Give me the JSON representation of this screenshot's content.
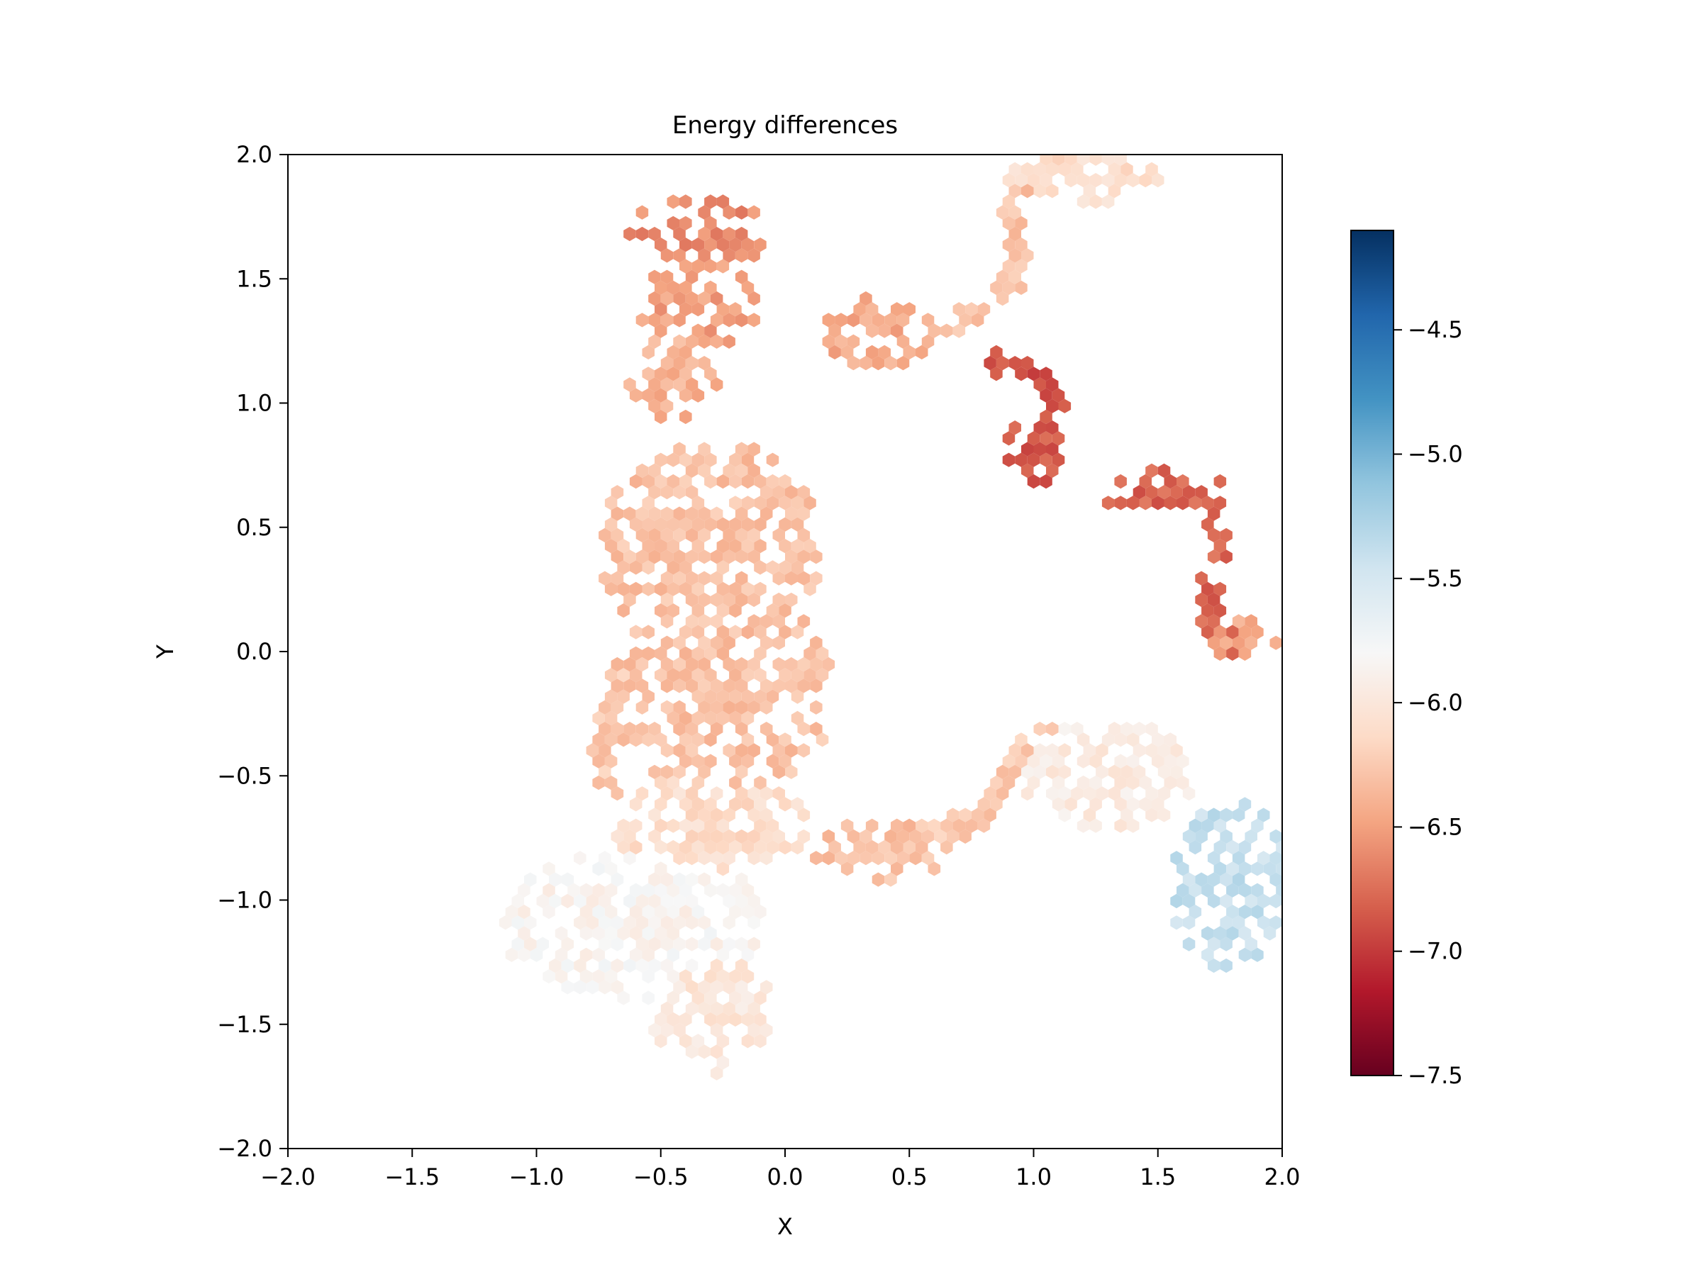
{
  "chart_data": {
    "type": "heatmap",
    "subtype": "hexbin",
    "title": "Energy differences",
    "xlabel": "X",
    "ylabel": "Y",
    "xlim": [
      -2.0,
      2.0
    ],
    "ylim": [
      -2.0,
      2.0
    ],
    "x_ticks": [
      "−2.0",
      "−1.5",
      "−1.0",
      "−0.5",
      "0.0",
      "0.5",
      "1.0",
      "1.5",
      "2.0"
    ],
    "y_ticks": [
      "−2.0",
      "−1.5",
      "−1.0",
      "−0.5",
      "0.0",
      "0.5",
      "1.0",
      "1.5",
      "2.0"
    ],
    "grid": false,
    "colormap": "RdBu",
    "colorbar": {
      "vmin": -7.5,
      "vmax": -4.1,
      "ticks": [
        "−4.5",
        "−5.0",
        "−5.5",
        "−6.0",
        "−6.5",
        "−7.0",
        "−7.5"
      ],
      "tick_values": [
        -4.5,
        -5.0,
        -5.5,
        -6.0,
        -6.5,
        -7.0,
        -7.5
      ],
      "stops": [
        "#67001f",
        "#b2182b",
        "#d6604d",
        "#f4a582",
        "#fddbc7",
        "#f7f7f7",
        "#d1e5f0",
        "#92c5de",
        "#4393c3",
        "#2166ac",
        "#053061"
      ]
    },
    "regions": [
      {
        "cx": -0.35,
        "cy": 1.68,
        "rx": 0.3,
        "ry": 0.14,
        "value": -6.6
      },
      {
        "cx": -0.35,
        "cy": 1.4,
        "rx": 0.25,
        "ry": 0.18,
        "value": -6.5
      },
      {
        "cx": -0.45,
        "cy": 1.1,
        "rx": 0.18,
        "ry": 0.18,
        "value": -6.4
      },
      {
        "cx": 0.38,
        "cy": 1.28,
        "rx": 0.22,
        "ry": 0.15,
        "value": -6.45
      },
      {
        "cx": -0.3,
        "cy": 0.4,
        "rx": 0.45,
        "ry": 0.45,
        "value": -6.3
      },
      {
        "cx": -0.25,
        "cy": -0.15,
        "rx": 0.45,
        "ry": 0.45,
        "value": -6.3
      },
      {
        "cx": -0.3,
        "cy": -0.7,
        "rx": 0.4,
        "ry": 0.2,
        "value": -6.1
      },
      {
        "cx": -0.6,
        "cy": -1.1,
        "rx": 0.55,
        "ry": 0.3,
        "value": -5.85
      },
      {
        "cx": -0.3,
        "cy": -1.45,
        "rx": 0.25,
        "ry": 0.25,
        "value": -6.0
      },
      {
        "cx": 0.4,
        "cy": -0.8,
        "rx": 0.3,
        "ry": 0.12,
        "value": -6.3
      },
      {
        "cx": 1.3,
        "cy": -0.5,
        "rx": 0.35,
        "ry": 0.22,
        "value": -5.95
      },
      {
        "cx": 1.8,
        "cy": -0.95,
        "rx": 0.25,
        "ry": 0.35,
        "value": -5.4
      },
      {
        "cx": 1.2,
        "cy": 1.9,
        "rx": 0.35,
        "ry": 0.1,
        "value": -6.1
      },
      {
        "cx": 1.0,
        "cy": 0.8,
        "rx": 0.12,
        "ry": 0.15,
        "value": -6.85
      },
      {
        "cx": 1.5,
        "cy": 0.65,
        "rx": 0.3,
        "ry": 0.08,
        "value": -6.8
      },
      {
        "cx": 1.85,
        "cy": 0.05,
        "rx": 0.15,
        "ry": 0.1,
        "value": -6.45
      }
    ],
    "trails": [
      {
        "points": [
          [
            0.6,
            1.3
          ],
          [
            0.75,
            1.35
          ],
          [
            0.9,
            1.45
          ],
          [
            0.95,
            1.6
          ],
          [
            0.92,
            1.75
          ],
          [
            0.95,
            1.9
          ]
        ],
        "value": -6.3
      },
      {
        "points": [
          [
            0.85,
            1.17
          ],
          [
            0.95,
            1.12
          ],
          [
            1.05,
            1.08
          ],
          [
            1.1,
            1.0
          ],
          [
            1.05,
            0.92
          ]
        ],
        "value": -6.9
      },
      {
        "points": [
          [
            1.75,
            0.55
          ],
          [
            1.75,
            0.4
          ],
          [
            1.7,
            0.25
          ],
          [
            1.72,
            0.1
          ],
          [
            1.8,
            0.02
          ]
        ],
        "value": -6.8
      },
      {
        "points": [
          [
            -0.65,
            -0.05
          ],
          [
            -0.7,
            -0.25
          ],
          [
            -0.75,
            -0.4
          ],
          [
            -0.7,
            -0.55
          ]
        ],
        "value": -6.25
      },
      {
        "points": [
          [
            0.55,
            -0.72
          ],
          [
            0.75,
            -0.7
          ],
          [
            0.85,
            -0.6
          ],
          [
            0.95,
            -0.4
          ],
          [
            1.05,
            -0.35
          ]
        ],
        "value": -6.25
      },
      {
        "points": [
          [
            -0.2,
            0.78
          ],
          [
            -0.15,
            0.7
          ],
          [
            0.05,
            0.62
          ]
        ],
        "value": -6.4
      }
    ]
  }
}
